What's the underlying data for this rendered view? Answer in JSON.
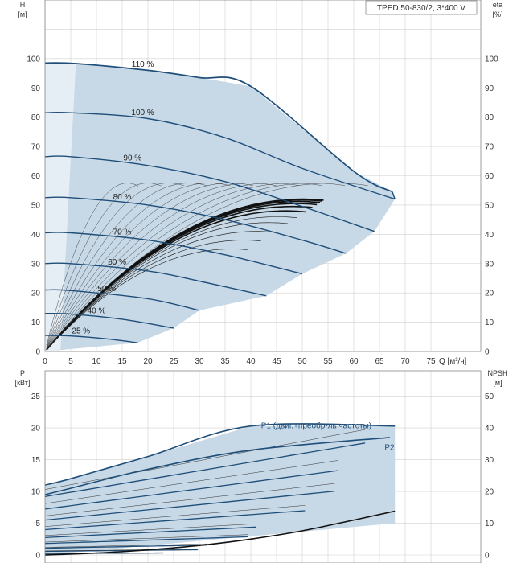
{
  "chart_data": [
    {
      "type": "line",
      "title": "TPED 50-830/2, 3*400 V",
      "ylabel_left": "H",
      "ylabel_left_unit": "[м]",
      "ylabel_right": "eta",
      "ylabel_right_unit": "[%]",
      "xlabel": "Q [м³/ч]",
      "xlim": [
        0,
        80
      ],
      "ylim": [
        0,
        110
      ],
      "x_ticks": [
        0,
        5,
        10,
        15,
        20,
        25,
        30,
        35,
        40,
        45,
        50,
        55,
        60,
        65,
        70,
        75
      ],
      "y_ticks": [
        0,
        10,
        20,
        30,
        40,
        50,
        60,
        70,
        80,
        90,
        100
      ],
      "grid": true,
      "colors": {
        "envelope_fill": "#c7d8e6",
        "curve": "#1f4e79",
        "eta": "#111111",
        "grid": "#d0d0d0"
      },
      "speed_curves": [
        {
          "name": "110 %",
          "points": [
            [
              0,
              98.5
            ],
            [
              6,
              98.3
            ],
            [
              20,
              96
            ],
            [
              30,
              93.5
            ],
            [
              40,
              90.5
            ],
            [
              60,
              61.5
            ],
            [
              67.5,
              54.5
            ]
          ]
        },
        {
          "name": "100 %",
          "points": [
            [
              0,
              81.5
            ],
            [
              5,
              81.5
            ],
            [
              20,
              79.5
            ],
            [
              35,
              73
            ],
            [
              50,
              62.5
            ],
            [
              68,
              52
            ]
          ]
        },
        {
          "name": "90 %",
          "points": [
            [
              0,
              66.5
            ],
            [
              5,
              66.5
            ],
            [
              20,
              63.5
            ],
            [
              35,
              58
            ],
            [
              50,
              49.5
            ],
            [
              64,
              41
            ]
          ]
        },
        {
          "name": "80 %",
          "points": [
            [
              0,
              52.5
            ],
            [
              5,
              52.5
            ],
            [
              20,
              50
            ],
            [
              35,
              45
            ],
            [
              50,
              38
            ],
            [
              58.5,
              33.5
            ]
          ]
        },
        {
          "name": "70 %",
          "points": [
            [
              0,
              40.5
            ],
            [
              5,
              40.5
            ],
            [
              20,
              38
            ],
            [
              35,
              33
            ],
            [
              50,
              26.5
            ]
          ]
        },
        {
          "name": "60 %",
          "points": [
            [
              0,
              30
            ],
            [
              5,
              30
            ],
            [
              20,
              27.5
            ],
            [
              30,
              24
            ],
            [
              43,
              19
            ]
          ]
        },
        {
          "name": "50 %",
          "points": [
            [
              0,
              21
            ],
            [
              5,
              20.8
            ],
            [
              20,
              18
            ],
            [
              30,
              14
            ]
          ]
        },
        {
          "name": "40 %",
          "points": [
            [
              0,
              13
            ],
            [
              5,
              12.8
            ],
            [
              15,
              11
            ],
            [
              25,
              8
            ]
          ]
        },
        {
          "name": "25 %",
          "points": [
            [
              0,
              5.5
            ],
            [
              5,
              5.3
            ],
            [
              12,
              4.3
            ],
            [
              18,
              3
            ]
          ]
        }
      ],
      "eta_max": 52
    },
    {
      "type": "line",
      "ylabel_left": "P",
      "ylabel_left_unit": "[кВт]",
      "ylabel_right": "NPSH",
      "ylabel_right_unit": "[м]",
      "xlim": [
        0,
        80
      ],
      "ylim": [
        0,
        27
      ],
      "y_ticks_left": [
        0,
        5,
        10,
        15,
        20,
        25
      ],
      "y_ticks_right": [
        0,
        10,
        20,
        30,
        40,
        50
      ],
      "grid": true,
      "series": [
        {
          "name": "P1 (двиг.+преобр-ль частоты)",
          "points": [
            [
              0,
              11
            ],
            [
              5,
              12
            ],
            [
              20,
              15.5
            ],
            [
              40,
              20.3
            ],
            [
              68,
              20.3
            ]
          ]
        },
        {
          "name": "P2",
          "points": [
            [
              0,
              9.5
            ],
            [
              5,
              10.5
            ],
            [
              20,
              13.5
            ],
            [
              40,
              16.5
            ],
            [
              67,
              18.5
            ]
          ]
        }
      ],
      "npsh": {
        "points": [
          [
            0,
            0
          ],
          [
            10,
            0.3
          ],
          [
            20,
            0.8
          ],
          [
            30,
            1.5
          ],
          [
            40,
            2.5
          ],
          [
            50,
            3.8
          ],
          [
            60,
            5.5
          ],
          [
            68,
            6.9
          ]
        ]
      }
    }
  ]
}
